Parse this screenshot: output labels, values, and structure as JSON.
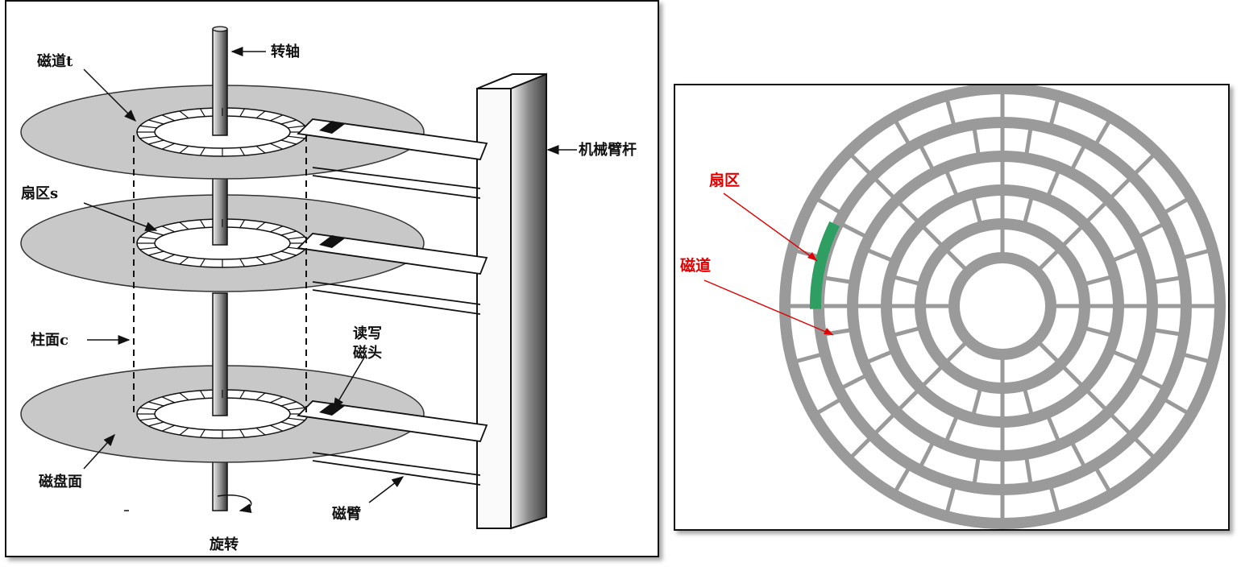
{
  "left_diagram": {
    "labels": {
      "spindle": "转轴",
      "track": "磁道t",
      "arm_rod": "机械臂杆",
      "sector": "扇区s",
      "cylinder": "柱面c",
      "rw_head_line1": "读写",
      "rw_head_line2": "磁头",
      "platter_surface": "磁盘面",
      "arm": "磁臂",
      "rotation": "旋转"
    }
  },
  "right_diagram": {
    "labels": {
      "sector": "扇区",
      "track": "磁道"
    },
    "colors": {
      "track": "#9a9a9a",
      "highlight_sector": "#2e9e62",
      "annotation": "#e00000"
    },
    "ring_count": 6
  }
}
